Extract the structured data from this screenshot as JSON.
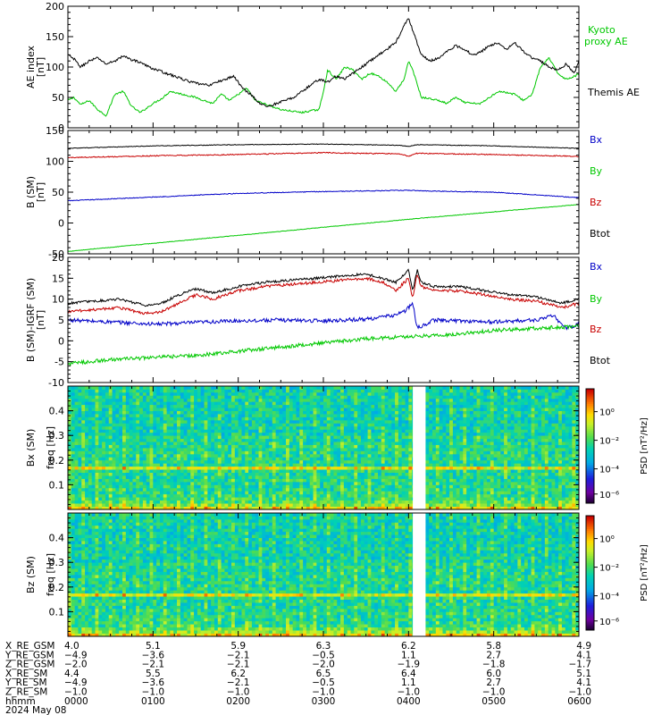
{
  "chart_data": [
    {
      "type": "line",
      "panel": "ae",
      "ylabel": "AE index",
      "yunit": "[nT]",
      "ylim": [
        0,
        200
      ],
      "yticks": [
        "0",
        "50",
        "100",
        "150",
        "200"
      ],
      "series": [
        {
          "name": "Kyoto proxy AE",
          "color": "#00c800",
          "x": [
            0,
            0.07,
            0.15,
            0.25,
            0.35,
            0.45,
            0.55,
            0.65,
            0.75,
            0.85,
            1.0,
            1.1,
            1.2,
            1.35,
            1.5,
            1.6,
            1.7,
            1.8,
            1.9,
            2.0,
            2.1,
            2.2,
            2.3,
            2.4,
            2.5,
            2.6,
            2.75,
            2.85,
            2.95,
            3.0,
            3.05,
            3.15,
            3.25,
            3.35,
            3.45,
            3.55,
            3.65,
            3.75,
            3.85,
            3.95,
            4.0,
            4.05,
            4.15,
            4.25,
            4.35,
            4.45,
            4.55,
            4.65,
            4.75,
            4.85,
            4.95,
            5.05,
            5.15,
            5.25,
            5.35,
            5.45,
            5.55,
            5.65,
            5.75,
            5.85,
            5.95,
            6.0
          ],
          "values": [
            45,
            50,
            38,
            45,
            30,
            20,
            55,
            60,
            35,
            25,
            40,
            48,
            60,
            55,
            50,
            45,
            40,
            55,
            45,
            55,
            65,
            45,
            40,
            35,
            30,
            28,
            25,
            28,
            30,
            60,
            95,
            80,
            100,
            95,
            80,
            90,
            85,
            75,
            60,
            80,
            110,
            95,
            50,
            48,
            45,
            40,
            50,
            42,
            40,
            40,
            50,
            60,
            58,
            55,
            45,
            55,
            100,
            115,
            90,
            80,
            85,
            88
          ]
        },
        {
          "name": "Themis AE",
          "color": "#000000",
          "x": [
            0,
            0.08,
            0.15,
            0.25,
            0.35,
            0.45,
            0.55,
            0.65,
            0.75,
            0.85,
            0.95,
            1.05,
            1.15,
            1.25,
            1.35,
            1.45,
            1.55,
            1.65,
            1.75,
            1.85,
            1.95,
            2.05,
            2.15,
            2.25,
            2.35,
            2.45,
            2.55,
            2.65,
            2.75,
            2.85,
            2.95,
            3.05,
            3.15,
            3.25,
            3.35,
            3.45,
            3.55,
            3.65,
            3.75,
            3.85,
            3.95,
            4.0,
            4.05,
            4.15,
            4.25,
            4.35,
            4.45,
            4.55,
            4.65,
            4.75,
            4.85,
            4.95,
            5.05,
            5.15,
            5.25,
            5.35,
            5.45,
            5.55,
            5.65,
            5.75,
            5.85,
            5.95,
            6.0
          ],
          "values": [
            120,
            112,
            100,
            110,
            115,
            105,
            110,
            118,
            112,
            108,
            100,
            95,
            90,
            85,
            80,
            75,
            72,
            70,
            75,
            80,
            85,
            65,
            55,
            40,
            35,
            40,
            45,
            50,
            60,
            70,
            80,
            75,
            85,
            80,
            90,
            100,
            110,
            120,
            130,
            140,
            170,
            180,
            160,
            120,
            110,
            115,
            125,
            135,
            130,
            120,
            125,
            135,
            140,
            130,
            140,
            125,
            115,
            110,
            100,
            95,
            105,
            90,
            110
          ]
        }
      ]
    },
    {
      "type": "line",
      "panel": "b_sm",
      "ylabel": "B (SM)",
      "yunit": "[nT]",
      "ylim": [
        -50,
        150
      ],
      "yticks": [
        "-50",
        "0",
        "50",
        "100",
        "150"
      ],
      "series": [
        {
          "name": "Bx",
          "color": "#0000c8",
          "x": [
            0,
            1,
            2,
            3,
            4,
            4.2,
            5,
            6
          ],
          "values": [
            36,
            42,
            48,
            51,
            53,
            52,
            50,
            41
          ]
        },
        {
          "name": "By",
          "color": "#00c800",
          "x": [
            0,
            1,
            2,
            3,
            4,
            5,
            6
          ],
          "values": [
            -46,
            -33,
            -20,
            -7,
            6,
            18,
            30
          ]
        },
        {
          "name": "Bz",
          "color": "#c80000",
          "x": [
            0,
            1,
            2,
            3,
            3.9,
            4.0,
            4.1,
            5,
            6
          ],
          "values": [
            106,
            109,
            111,
            114,
            112,
            108,
            113,
            111,
            108
          ]
        },
        {
          "name": "Btot",
          "color": "#000000",
          "x": [
            0,
            1,
            2,
            3,
            3.9,
            4.0,
            4.1,
            5,
            6
          ],
          "values": [
            121,
            125,
            127,
            128,
            126,
            124,
            127,
            125,
            121
          ]
        }
      ]
    },
    {
      "type": "line",
      "panel": "b_minus_igrf",
      "ylabel": "B (SM)-IGRF (SM)",
      "yunit": "[nT]",
      "ylim": [
        -10,
        20
      ],
      "yticks": [
        "-10",
        "-5",
        "0",
        "5",
        "10",
        "15",
        "20"
      ],
      "series": [
        {
          "name": "Bx",
          "color": "#0000c8",
          "x": [
            0,
            0.5,
            1.0,
            1.3,
            1.6,
            2.0,
            2.5,
            3.0,
            3.5,
            3.8,
            3.95,
            4.0,
            4.05,
            4.1,
            4.3,
            4.6,
            5.0,
            5.5,
            5.7,
            5.85,
            6.0
          ],
          "values": [
            5,
            4.5,
            4,
            4.2,
            4.5,
            4.8,
            5,
            4.8,
            5.2,
            6,
            7,
            8,
            9,
            3,
            5,
            4.8,
            4.5,
            5,
            6,
            3,
            4
          ]
        },
        {
          "name": "By",
          "color": "#00c800",
          "x": [
            0,
            0.5,
            1.0,
            1.5,
            2.0,
            2.5,
            3.0,
            3.5,
            4.0,
            4.5,
            5.0,
            5.5,
            6.0
          ],
          "values": [
            -5.5,
            -4.5,
            -4,
            -3.5,
            -2.5,
            -1.5,
            -0.5,
            0.5,
            1,
            1.5,
            2.5,
            3,
            3.5
          ]
        },
        {
          "name": "Bz",
          "color": "#c80000",
          "x": [
            0,
            0.3,
            0.6,
            0.9,
            1.1,
            1.3,
            1.5,
            1.7,
            2.0,
            2.3,
            2.6,
            2.9,
            3.2,
            3.5,
            3.7,
            3.85,
            3.95,
            4.0,
            4.05,
            4.1,
            4.15,
            4.3,
            4.6,
            4.9,
            5.2,
            5.5,
            5.8,
            6.0
          ],
          "values": [
            7,
            7.5,
            8,
            6.5,
            7,
            9,
            11,
            10,
            12,
            13,
            13.5,
            14,
            14.5,
            15,
            14,
            12,
            14,
            15,
            10,
            16,
            13,
            12,
            12,
            11,
            10,
            9.5,
            8,
            9
          ]
        },
        {
          "name": "Btot",
          "color": "#000000",
          "x": [
            0,
            0.3,
            0.6,
            0.9,
            1.1,
            1.3,
            1.5,
            1.7,
            2.0,
            2.3,
            2.6,
            2.9,
            3.2,
            3.5,
            3.7,
            3.85,
            3.95,
            4.0,
            4.05,
            4.1,
            4.15,
            4.3,
            4.6,
            4.9,
            5.2,
            5.5,
            5.8,
            6.0
          ],
          "values": [
            9,
            9.5,
            10,
            8.5,
            9,
            11,
            12.5,
            11.5,
            13,
            14,
            14.5,
            15,
            15.5,
            16,
            15,
            14,
            16,
            17,
            12,
            17,
            14,
            13,
            13,
            12,
            11,
            10.5,
            9,
            10
          ]
        }
      ]
    },
    {
      "type": "heatmap",
      "panel": "bx_spec",
      "ylabel": "Bx (SM)",
      "ylabel2": "freq [Hz]",
      "ylim": [
        0,
        0.5
      ],
      "yticks": [
        "0.1",
        "0.2",
        "0.3",
        "0.4"
      ],
      "data_gap": [
        4.05,
        4.2
      ],
      "colorbar_label": "PSD [nT²/Hz]",
      "colorbar_ticks": [
        "10⁰",
        "10⁻²",
        "10⁻⁴",
        "10⁻⁶"
      ]
    },
    {
      "type": "heatmap",
      "panel": "bz_spec",
      "ylabel": "Bz (SM)",
      "ylabel2": "freq [Hz]",
      "ylim": [
        0,
        0.5
      ],
      "yticks": [
        "0.1",
        "0.2",
        "0.3",
        "0.4"
      ],
      "data_gap": [
        4.05,
        4.2
      ],
      "colorbar_label": "PSD [nT²/Hz]",
      "colorbar_ticks": [
        "10⁰",
        "10⁻²",
        "10⁻⁴",
        "10⁻⁶"
      ]
    }
  ],
  "axis": {
    "rows": [
      {
        "label": "X_RE_GSM",
        "values": [
          "4.0",
          "5.1",
          "5.9",
          "6.3",
          "6.2",
          "5.8",
          "4.9"
        ]
      },
      {
        "label": "Y_RE_GSM",
        "values": [
          "−4.9",
          "−3.6",
          "−2.1",
          "−0.5",
          "1.1",
          "2.7",
          "4.1"
        ]
      },
      {
        "label": "Z_RE_GSM",
        "values": [
          "−2.0",
          "−2.1",
          "−2.1",
          "−2.0",
          "−1.9",
          "−1.8",
          "−1.7"
        ]
      },
      {
        "label": "X_RE_SM",
        "values": [
          "4.4",
          "5.5",
          "6.2",
          "6.5",
          "6.4",
          "6.0",
          "5.1"
        ]
      },
      {
        "label": "Y_RE_SM",
        "values": [
          "−4.9",
          "−3.6",
          "−2.1",
          "−0.5",
          "1.1",
          "2.7",
          "4.1"
        ]
      },
      {
        "label": "Z_RE_SM",
        "values": [
          "−1.0",
          "−1.0",
          "−1.0",
          "−1.0",
          "−1.0",
          "−1.0",
          "−1.0"
        ]
      },
      {
        "label": "hhmm",
        "values": [
          "0000",
          "0100",
          "0200",
          "0300",
          "0400",
          "0500",
          "0600"
        ]
      }
    ],
    "date": "2024 May 08",
    "xlim": [
      0,
      6
    ]
  }
}
